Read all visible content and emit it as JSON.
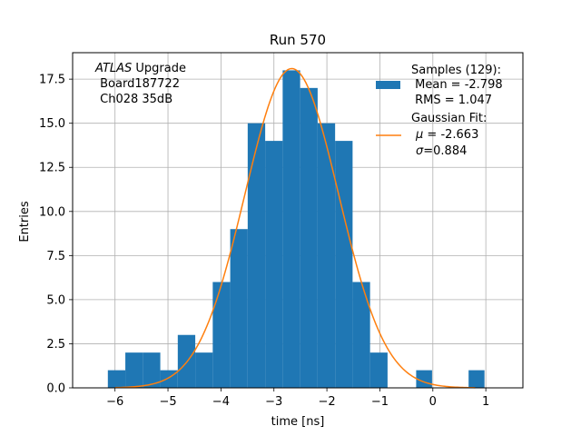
{
  "chart_data": {
    "type": "bar",
    "title": "Run 570",
    "xlabel": "time [ns]",
    "ylabel": "Entries",
    "xlim": [
      -6.8,
      1.7
    ],
    "ylim": [
      0,
      19.0
    ],
    "grid": true,
    "xticks": [
      -6,
      -5,
      -4,
      -3,
      -2,
      -1,
      0,
      1
    ],
    "xtick_labels": [
      "−6",
      "−5",
      "−4",
      "−3",
      "−2",
      "−1",
      "0",
      "1"
    ],
    "yticks": [
      0,
      2.5,
      5,
      7.5,
      10,
      12.5,
      15,
      17.5
    ],
    "ytick_labels": [
      "0.0",
      "2.5",
      "5.0",
      "7.5",
      "10.0",
      "12.5",
      "15.0",
      "17.5"
    ],
    "histogram": {
      "name": "Samples (129):",
      "color": "#1f77b4",
      "bins": [
        {
          "x0": -6.135,
          "x1": -5.805,
          "value": 1
        },
        {
          "x0": -5.805,
          "x1": -5.475,
          "value": 2
        },
        {
          "x0": -5.475,
          "x1": -5.145,
          "value": 2
        },
        {
          "x0": -5.145,
          "x1": -4.815,
          "value": 1
        },
        {
          "x0": -4.815,
          "x1": -4.485,
          "value": 3
        },
        {
          "x0": -4.485,
          "x1": -4.155,
          "value": 2
        },
        {
          "x0": -4.155,
          "x1": -3.825,
          "value": 6
        },
        {
          "x0": -3.825,
          "x1": -3.495,
          "value": 9
        },
        {
          "x0": -3.495,
          "x1": -3.165,
          "value": 15
        },
        {
          "x0": -3.165,
          "x1": -2.835,
          "value": 14
        },
        {
          "x0": -2.835,
          "x1": -2.505,
          "value": 18
        },
        {
          "x0": -2.505,
          "x1": -2.175,
          "value": 17
        },
        {
          "x0": -2.175,
          "x1": -1.845,
          "value": 15
        },
        {
          "x0": -1.845,
          "x1": -1.515,
          "value": 14
        },
        {
          "x0": -1.515,
          "x1": -1.185,
          "value": 6
        },
        {
          "x0": -1.185,
          "x1": -0.855,
          "value": 2
        },
        {
          "x0": -0.315,
          "x1": -0.015,
          "value": 1
        },
        {
          "x0": 0.675,
          "x1": 0.975,
          "value": 1
        }
      ]
    },
    "fit": {
      "name": "Gaussian Fit:",
      "color": "#ff7f0e",
      "mu": -2.663,
      "sigma": 0.884,
      "amplitude": 18.1,
      "x_range": [
        -6.0,
        0.8
      ]
    },
    "legend_position": "top-right",
    "legend": {
      "samples_title": "Samples (129):",
      "samples_mean": " Mean = -2.798",
      "samples_rms": " RMS = 1.047",
      "fit_title": "Gaussian Fit:",
      "fit_mu_symbol": "μ",
      "fit_mu_value": " = -2.663",
      "fit_sigma_symbol": "σ",
      "fit_sigma_value": "=0.884"
    },
    "annotation": {
      "line1_italic": "ATLAS",
      "line1_rest": " Upgrade",
      "line2": " Board187722",
      "line3": " Ch028 35dB"
    }
  }
}
